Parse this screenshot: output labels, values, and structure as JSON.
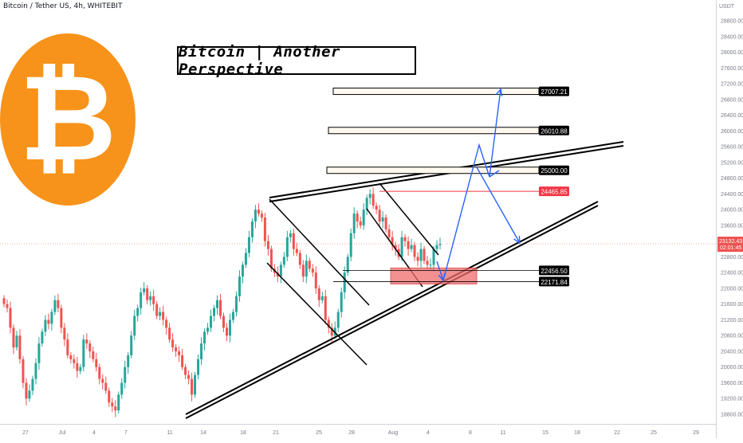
{
  "header": {
    "symbol": "Bitcoin / Tether US, 4h, WHITEBIT",
    "currency": "USDT"
  },
  "title": "Bitcoin | Another Perspective",
  "colors": {
    "up": "#26a69a",
    "down": "#ef5350",
    "bitcoin_orange": "#f7931a",
    "arrow": "#2962ff",
    "support_zone": "#f06b6b",
    "resistance_line": "#f23645",
    "price_line": "#ef5350"
  },
  "icons": {
    "logo": "bitcoin-logo-icon"
  },
  "chart_data": {
    "type": "candlestick",
    "title": "Bitcoin | Another Perspective",
    "series_name": "BTC/USDT 4h",
    "y_range": [
      18600,
      29200
    ],
    "y_ticks": [
      18800,
      19200,
      19600,
      20000,
      20400,
      20800,
      21200,
      21600,
      22000,
      22400,
      22800,
      23200,
      23600,
      24000,
      24400,
      24800,
      25200,
      25600,
      26000,
      26400,
      26800,
      27200,
      27600,
      28000,
      28400,
      28800
    ],
    "x_ticks": [
      "27",
      "Jul",
      "4",
      "7",
      "11",
      "14",
      "18",
      "21",
      "25",
      "28",
      "Aug",
      "4",
      "8",
      "11",
      "15",
      "18",
      "22",
      "25",
      "29"
    ],
    "current_price": {
      "label": "23132.43",
      "countdown": "02:01:45",
      "value": 23132
    },
    "levels": [
      {
        "label": "27007.21",
        "value": 27007,
        "style": "box"
      },
      {
        "label": "26010.88",
        "value": 26011,
        "style": "box"
      },
      {
        "label": "25000.00",
        "value": 25000,
        "style": "box"
      },
      {
        "label": "24465.85",
        "value": 24466,
        "style": "red-line"
      },
      {
        "label": "22456.50",
        "value": 22457,
        "style": "zone-top"
      },
      {
        "label": "22171.84",
        "value": 22172,
        "style": "zone-bottom"
      }
    ],
    "closes": [
      21600,
      21500,
      21000,
      20500,
      20800,
      20200,
      19600,
      19200,
      19400,
      19700,
      20100,
      20600,
      20900,
      21200,
      21100,
      21400,
      21700,
      21500,
      21000,
      20700,
      20300,
      20200,
      20100,
      19900,
      20000,
      20700,
      20600,
      20400,
      20200,
      20000,
      19700,
      19600,
      19400,
      19100,
      19000,
      18900,
      19300,
      19600,
      20000,
      20300,
      20800,
      21300,
      21500,
      21900,
      22000,
      21700,
      21800,
      21600,
      21300,
      21400,
      21200,
      21000,
      20700,
      20500,
      20400,
      20300,
      20000,
      19800,
      19700,
      19300,
      19800,
      20200,
      20600,
      20900,
      21000,
      21300,
      21500,
      21700,
      21300,
      21000,
      20800,
      21200,
      21400,
      21800,
      22300,
      22600,
      22900,
      23300,
      23700,
      24000,
      23900,
      23800,
      23200,
      23000,
      22500,
      22400,
      22300,
      22600,
      22800,
      23300,
      23400,
      23000,
      22900,
      22600,
      22300,
      22700,
      22500,
      22400,
      22000,
      21700,
      21800,
      21200,
      21000,
      20800,
      21000,
      21400,
      21900,
      22400,
      22800,
      23400,
      23900,
      23700,
      23600,
      24000,
      24300,
      24400,
      24100,
      24000,
      23700,
      23800,
      23500,
      23300,
      23100,
      23000,
      22800,
      23300,
      23200,
      23000,
      23100,
      22800,
      22700,
      23000,
      22700,
      22600,
      22600,
      23000,
      23100,
      23132
    ]
  }
}
